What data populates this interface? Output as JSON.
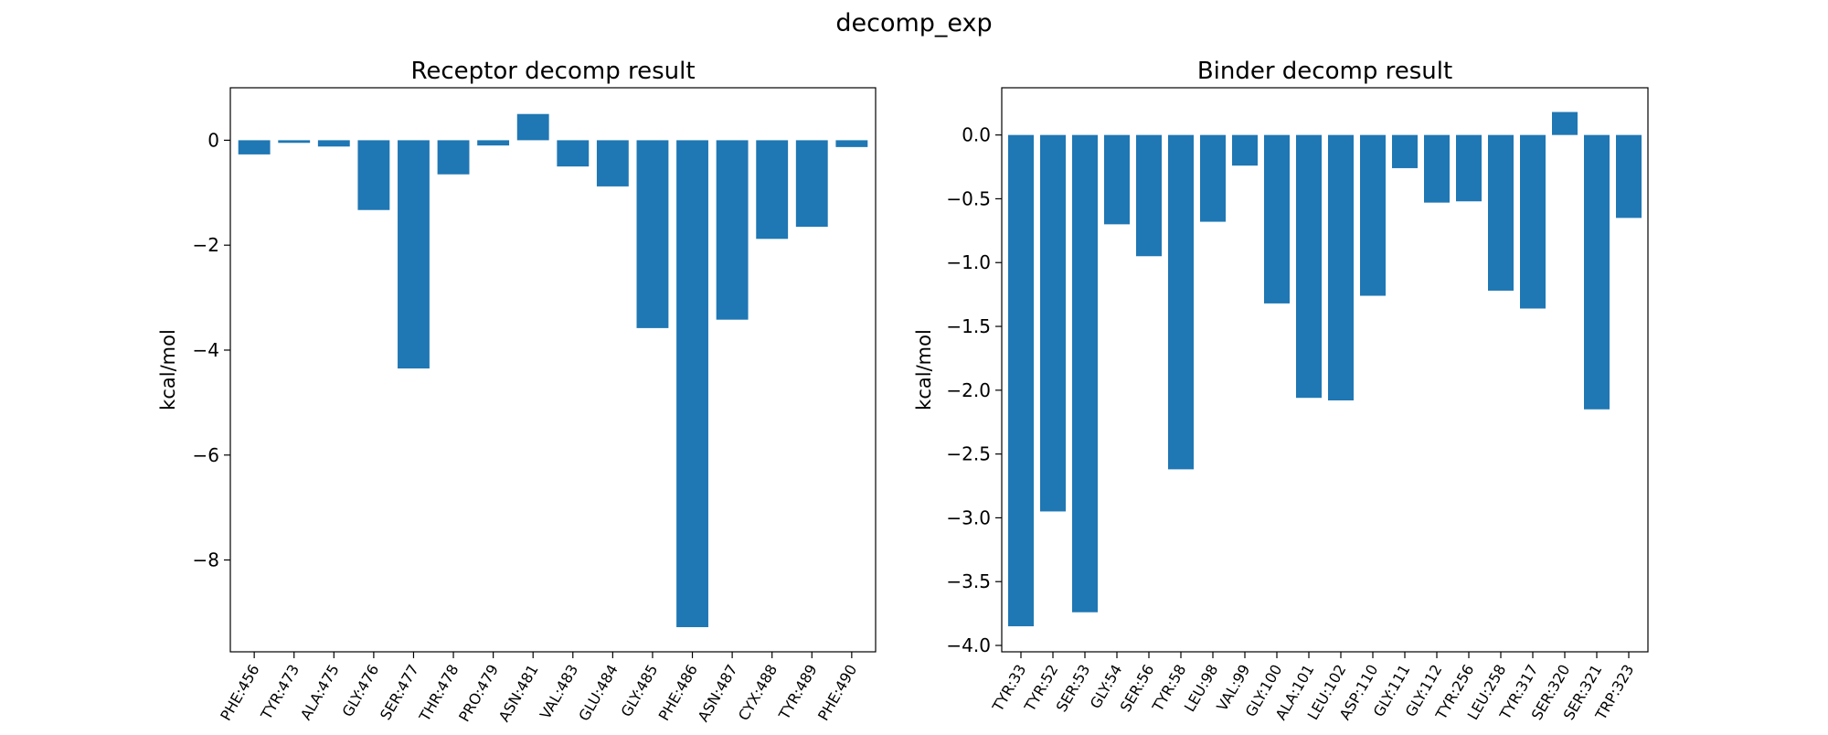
{
  "figure": {
    "suptitle": "decomp_exp"
  },
  "chart_data": [
    {
      "type": "bar",
      "title": "Receptor decomp result",
      "xlabel": "",
      "ylabel": "kcal/mol",
      "ylim": [
        -9.75,
        1.0
      ],
      "yticks": [
        0,
        -2,
        -4,
        -6,
        -8
      ],
      "tick_labels": [
        "0",
        "−2",
        "−4",
        "−6",
        "−8"
      ],
      "grid": false,
      "color": "#1f77b4",
      "categories": [
        "PHE:456",
        "TYR:473",
        "ALA:475",
        "GLY:476",
        "SER:477",
        "THR:478",
        "PRO:479",
        "ASN:481",
        "VAL:483",
        "GLU:484",
        "GLY:485",
        "PHE:486",
        "ASN:487",
        "CYX:488",
        "TYR:489",
        "PHE:490"
      ],
      "values": [
        -0.27,
        -0.05,
        -0.12,
        -1.33,
        -4.35,
        -0.65,
        -0.1,
        0.5,
        -0.5,
        -0.88,
        -3.58,
        -9.28,
        -3.42,
        -1.88,
        -1.65,
        -0.13
      ]
    },
    {
      "type": "bar",
      "title": "Binder decomp result",
      "xlabel": "",
      "ylabel": "kcal/mol",
      "ylim": [
        -4.05,
        0.37
      ],
      "yticks": [
        0.0,
        -0.5,
        -1.0,
        -1.5,
        -2.0,
        -2.5,
        -3.0,
        -3.5,
        -4.0
      ],
      "tick_labels": [
        "0.0",
        "−0.5",
        "−1.0",
        "−1.5",
        "−2.0",
        "−2.5",
        "−3.0",
        "−3.5",
        "−4.0"
      ],
      "grid": false,
      "color": "#1f77b4",
      "categories": [
        "TYR:33",
        "TYR:52",
        "SER:53",
        "GLY:54",
        "SER:56",
        "TYR:58",
        "LEU:98",
        "VAL:99",
        "GLY:100",
        "ALA:101",
        "LEU:102",
        "ASP:110",
        "GLY:111",
        "GLY:112",
        "TYR:256",
        "LEU:258",
        "TYR:317",
        "SER:320",
        "SER:321",
        "TRP:323"
      ],
      "values": [
        -3.85,
        -2.95,
        -3.74,
        -0.7,
        -0.95,
        -2.62,
        -0.68,
        -0.24,
        -1.32,
        -2.06,
        -2.08,
        -1.26,
        -0.26,
        -0.53,
        -0.52,
        -1.22,
        -1.36,
        0.18,
        -2.15,
        -0.65
      ]
    }
  ]
}
